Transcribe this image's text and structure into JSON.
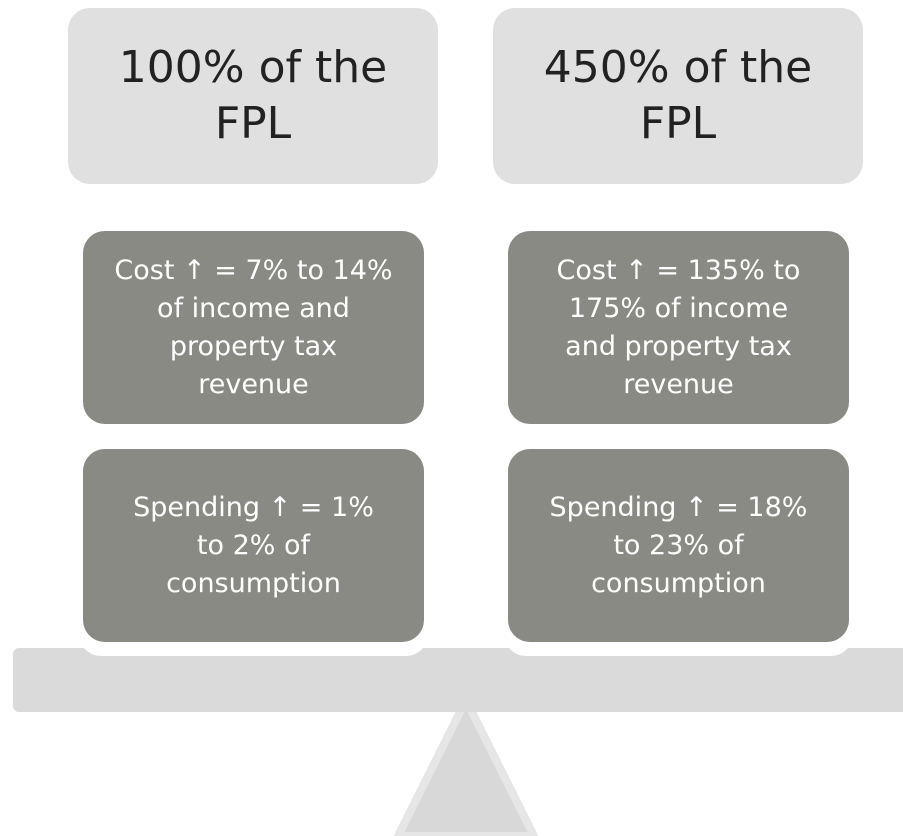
{
  "columns": [
    {
      "header": [
        "100% of the",
        "FPL"
      ],
      "boxes": [
        [
          "Cost ↑ = 7% to 14%",
          "of income and",
          "property tax",
          "revenue"
        ],
        [
          "Spending ↑ = 1%",
          "to 2% of",
          "consumption"
        ]
      ]
    },
    {
      "header": [
        "450% of the",
        "FPL"
      ],
      "boxes": [
        [
          "Cost ↑ = 135% to",
          "175% of income",
          "and property tax",
          "revenue"
        ],
        [
          "Spending ↑ = 18%",
          "to 23% of",
          "consumption"
        ]
      ]
    }
  ]
}
